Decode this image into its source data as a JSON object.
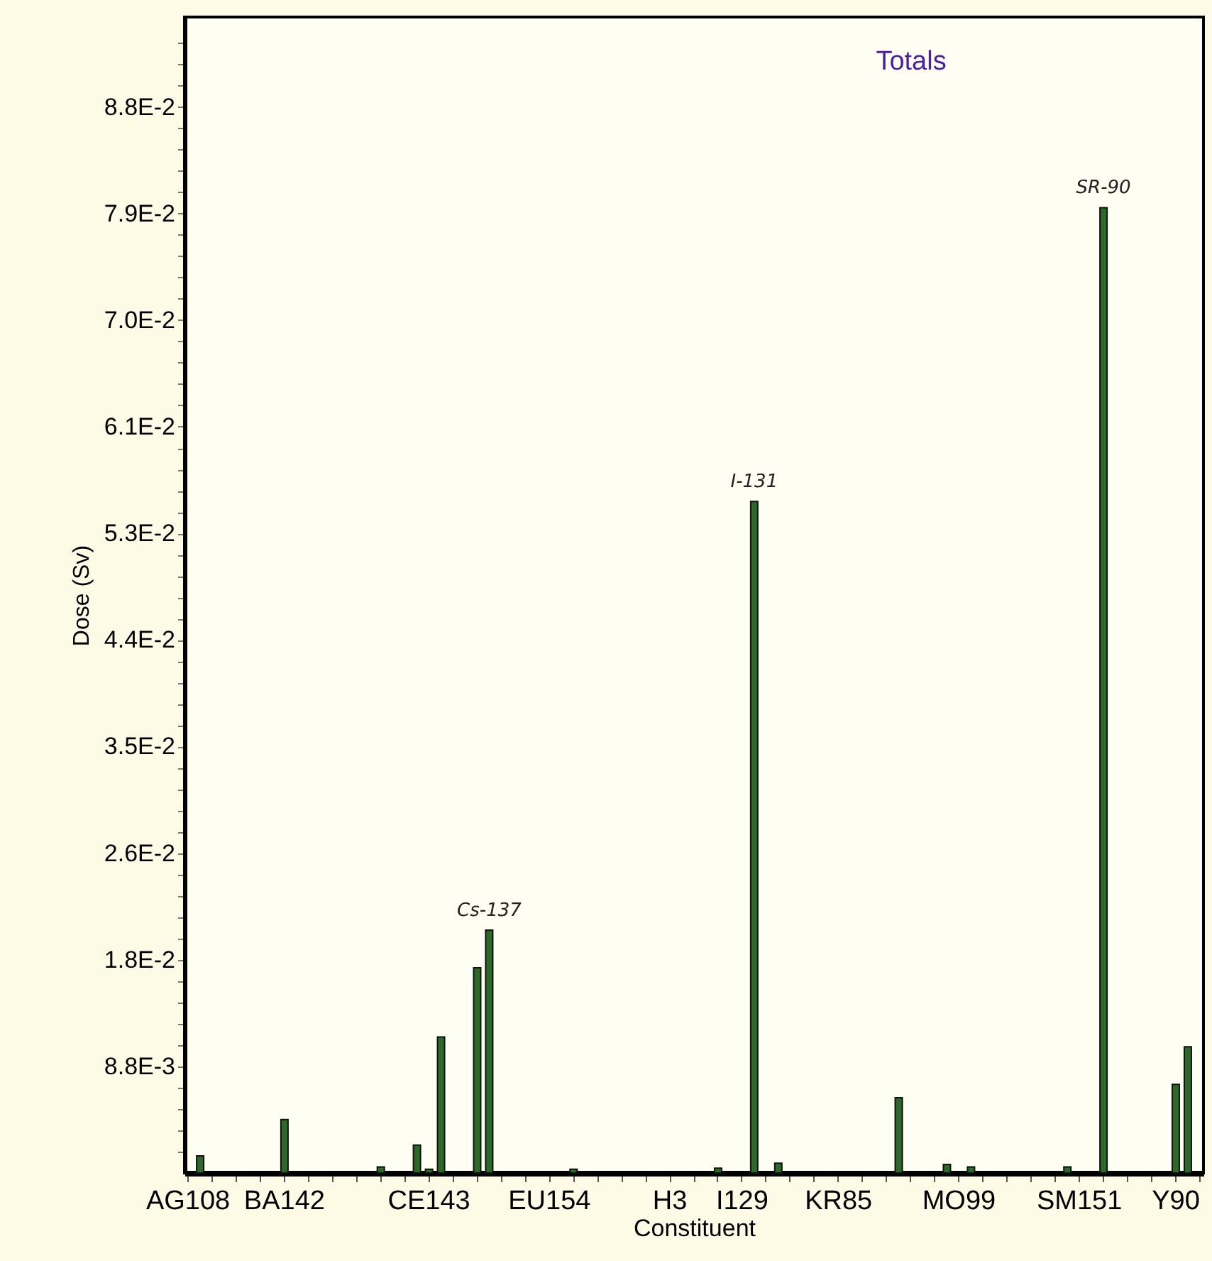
{
  "chart_data": {
    "type": "bar",
    "title": "Totals",
    "xlabel": "Constituent",
    "ylabel": "Dose (Sv)",
    "categories": [
      "AG108",
      null,
      null,
      null,
      null,
      null,
      null,
      null,
      "BA142",
      null,
      null,
      null,
      null,
      null,
      null,
      null,
      null,
      null,
      null,
      null,
      "CE143",
      null,
      null,
      null,
      null,
      null,
      null,
      null,
      null,
      null,
      "EU154",
      null,
      null,
      null,
      null,
      null,
      null,
      null,
      null,
      null,
      "H3",
      null,
      null,
      null,
      null,
      null,
      "I129",
      null,
      null,
      null,
      null,
      null,
      null,
      null,
      "KR85",
      null,
      null,
      null,
      null,
      null,
      null,
      null,
      null,
      null,
      "MO99",
      null,
      null,
      null,
      null,
      null,
      null,
      null,
      null,
      null,
      "SM151",
      null,
      null,
      null,
      null,
      null,
      null,
      null,
      "Y90",
      null,
      null
    ],
    "values": [
      null,
      0.0014,
      null,
      null,
      null,
      null,
      null,
      null,
      0.0044,
      null,
      null,
      null,
      null,
      null,
      null,
      null,
      0.0005,
      null,
      null,
      0.0023,
      0.0003,
      0.0112,
      null,
      null,
      0.0169,
      0.02,
      null,
      null,
      null,
      null,
      null,
      null,
      0.0003,
      null,
      null,
      null,
      null,
      null,
      null,
      null,
      null,
      null,
      null,
      null,
      0.0004,
      null,
      null,
      0.0553,
      null,
      0.0008,
      null,
      null,
      null,
      null,
      null,
      null,
      null,
      null,
      null,
      0.0062,
      null,
      null,
      null,
      0.0007,
      null,
      0.0005,
      null,
      null,
      null,
      null,
      null,
      null,
      null,
      0.0005,
      null,
      null,
      0.0795,
      null,
      null,
      null,
      null,
      null,
      0.0073,
      0.0104,
      null
    ],
    "color": "#2d6a2a",
    "ylim": [
      0,
      0.0952
    ],
    "yticks": [
      {
        "value": 0.001756,
        "label": null
      },
      {
        "value": 0.003512,
        "label": null
      },
      {
        "value": 0.005268,
        "label": null
      },
      {
        "value": 0.007024,
        "label": null
      },
      {
        "value": 0.00878,
        "label": "8.8E-3"
      },
      {
        "value": 0.010536,
        "label": null
      },
      {
        "value": 0.012292,
        "label": null
      },
      {
        "value": 0.014048,
        "label": null
      },
      {
        "value": 0.015804,
        "label": null
      },
      {
        "value": 0.01756,
        "label": "1.8E-2"
      },
      {
        "value": 0.019316,
        "label": null
      },
      {
        "value": 0.021072,
        "label": null
      },
      {
        "value": 0.022828,
        "label": null
      },
      {
        "value": 0.024584,
        "label": null
      },
      {
        "value": 0.02634,
        "label": "2.6E-2"
      },
      {
        "value": 0.028096,
        "label": null
      },
      {
        "value": 0.029852,
        "label": null
      },
      {
        "value": 0.031608,
        "label": null
      },
      {
        "value": 0.033364,
        "label": null
      },
      {
        "value": 0.03512,
        "label": "3.5E-2"
      },
      {
        "value": 0.036876,
        "label": null
      },
      {
        "value": 0.038632,
        "label": null
      },
      {
        "value": 0.040388,
        "label": null
      },
      {
        "value": 0.042144,
        "label": null
      },
      {
        "value": 0.0439,
        "label": "4.4E-2"
      },
      {
        "value": 0.045656,
        "label": null
      },
      {
        "value": 0.047412,
        "label": null
      },
      {
        "value": 0.049168,
        "label": null
      },
      {
        "value": 0.050924,
        "label": null
      },
      {
        "value": 0.05268,
        "label": "5.3E-2"
      },
      {
        "value": 0.054436,
        "label": null
      },
      {
        "value": 0.056192,
        "label": null
      },
      {
        "value": 0.057948,
        "label": null
      },
      {
        "value": 0.059704,
        "label": null
      },
      {
        "value": 0.06146,
        "label": "6.1E-2"
      },
      {
        "value": 0.063216,
        "label": null
      },
      {
        "value": 0.064972,
        "label": null
      },
      {
        "value": 0.066728,
        "label": null
      },
      {
        "value": 0.068484,
        "label": null
      },
      {
        "value": 0.07024,
        "label": "7.0E-2"
      },
      {
        "value": 0.071996,
        "label": null
      },
      {
        "value": 0.073752,
        "label": null
      },
      {
        "value": 0.075508,
        "label": null
      },
      {
        "value": 0.077264,
        "label": null
      },
      {
        "value": 0.07902,
        "label": "7.9E-2"
      },
      {
        "value": 0.080776,
        "label": null
      },
      {
        "value": 0.082532,
        "label": null
      },
      {
        "value": 0.084288,
        "label": null
      },
      {
        "value": 0.086044,
        "label": null
      },
      {
        "value": 0.0878,
        "label": "8.8E-2"
      },
      {
        "value": 0.089556,
        "label": null
      },
      {
        "value": 0.091312,
        "label": null
      },
      {
        "value": 0.093068,
        "label": null
      }
    ],
    "grid": false,
    "annotations": [
      {
        "text": "Cs-137",
        "y": 0.02
      },
      {
        "text": "I-131",
        "y": 0.0553
      },
      {
        "text": "SR-90",
        "y": 0.0795
      }
    ]
  }
}
